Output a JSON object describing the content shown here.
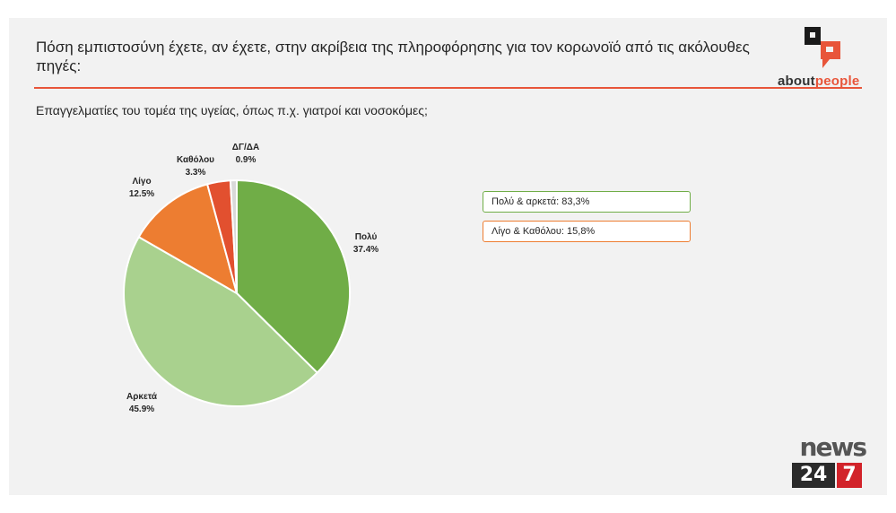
{
  "header": {
    "title": "Πόση εμπιστοσύνη έχετε, αν έχετε, στην ακρίβεια της πληροφόρησης για τον κορωνοϊό από τις ακόλουθες πηγές:",
    "subtitle": "Επαγγελματίες του τομέα της υγείας, όπως π.χ. γιατροί και νοσοκόμες;"
  },
  "brand": {
    "logo_word_part1": "about",
    "logo_word_part2": "people",
    "news_word": "news",
    "news_num1": "24",
    "news_num2": "7"
  },
  "legend": {
    "positive": "Πολύ & αρκετά: 83,3%",
    "negative": "Λίγο & Καθόλου: 15,8%"
  },
  "chart_data": {
    "type": "pie",
    "start": "top, clockwise",
    "slices": [
      {
        "name": "Πολύ",
        "value": 37.4,
        "label": "37.4%",
        "color": "#70ad47"
      },
      {
        "name": "Αρκετά",
        "value": 45.9,
        "label": "45.9%",
        "color": "#a9d18e"
      },
      {
        "name": "Λίγο",
        "value": 12.5,
        "label": "12.5%",
        "color": "#ed7d31"
      },
      {
        "name": "Καθόλου",
        "value": 3.3,
        "label": "3.3%",
        "color": "#e2502f"
      },
      {
        "name": "ΔΓ/ΔΑ",
        "value": 0.9,
        "label": "0.9%",
        "color": "#d9d9d9"
      }
    ]
  }
}
